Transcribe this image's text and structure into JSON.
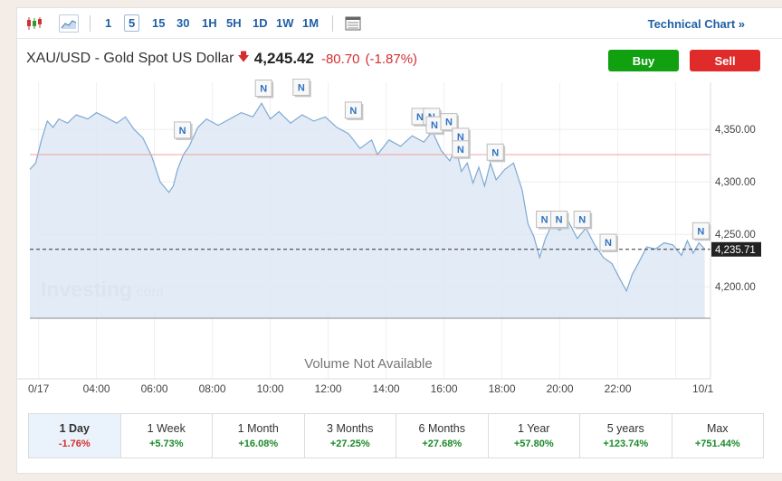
{
  "toolbar": {
    "intervals": [
      "1",
      "5",
      "15",
      "30",
      "1H",
      "5H",
      "1D",
      "1W",
      "1M"
    ],
    "active_interval": "5",
    "technical_chart_label": "Technical Chart »"
  },
  "header": {
    "name": "XAU/USD - Gold Spot US Dollar",
    "arrow": "🡇",
    "price": "4,245.42",
    "change": "-80.70",
    "change_pct": "(-1.87%)"
  },
  "buttons": {
    "buy": "Buy",
    "sell": "Sell"
  },
  "colors": {
    "accent": "#1f5fa6",
    "buy": "#10a010",
    "sell": "#e02b2b",
    "line": "#7fa9d3",
    "fill": "#dde8f4",
    "prev_close": "#f2a0a0",
    "pos": "#1a8a2a",
    "neg": "#d32f2f"
  },
  "chart_data": {
    "type": "area",
    "x_ticks": [
      "0/17",
      "04:00",
      "06:00",
      "08:00",
      "10:00",
      "12:00",
      "14:00",
      "16:00",
      "18:00",
      "20:00",
      "22:00",
      "10/1"
    ],
    "y_ticks": [
      "4,350.00",
      "4,300.00",
      "4,250.00",
      "4,200.00"
    ],
    "y_tick_values": [
      4350,
      4300,
      4250,
      4200
    ],
    "ylim": [
      4170,
      4395
    ],
    "xlim": [
      0,
      23.5
    ],
    "current_value": 4235.71,
    "current_label": "4,235.71",
    "prev_close": 4326,
    "volume_label": "Volume Not Available",
    "watermark": "Investing",
    "watermark_suffix": ".com",
    "news_marker": "N",
    "news_markers": [
      {
        "t": 5.3,
        "v": 4333
      },
      {
        "t": 8.1,
        "v": 4373
      },
      {
        "t": 9.4,
        "v": 4374
      },
      {
        "t": 11.2,
        "v": 4352
      },
      {
        "t": 13.5,
        "v": 4346
      },
      {
        "t": 13.9,
        "v": 4346
      },
      {
        "t": 14.0,
        "v": 4338
      },
      {
        "t": 14.5,
        "v": 4341
      },
      {
        "t": 14.9,
        "v": 4327
      },
      {
        "t": 14.9,
        "v": 4315
      },
      {
        "t": 16.1,
        "v": 4312
      },
      {
        "t": 17.8,
        "v": 4248
      },
      {
        "t": 18.3,
        "v": 4248
      },
      {
        "t": 19.1,
        "v": 4248
      },
      {
        "t": 20.0,
        "v": 4226
      },
      {
        "t": 23.2,
        "v": 4237
      }
    ],
    "series": [
      {
        "t": [
          0,
          0.2,
          0.4,
          0.6,
          0.8,
          1.0,
          1.3,
          1.6,
          2.0,
          2.3,
          2.6,
          3.0,
          3.3,
          3.6,
          3.9,
          4.2,
          4.5,
          4.8,
          4.95,
          5.1,
          5.3,
          5.5,
          5.8,
          6.1,
          6.5,
          6.9,
          7.3,
          7.7,
          8.0,
          8.3,
          8.6,
          9.0,
          9.4,
          9.8,
          10.2,
          10.6,
          11.0,
          11.4,
          11.8,
          12.0,
          12.4,
          12.8,
          13.2,
          13.6,
          13.9,
          14.2,
          14.5,
          14.7,
          14.9,
          15.1,
          15.3,
          15.5,
          15.7,
          15.9,
          16.1,
          16.4,
          16.7,
          17.0,
          17.2,
          17.4,
          17.6,
          17.8,
          18.0,
          18.3,
          18.6,
          18.9,
          19.2,
          19.5,
          19.8,
          20.1,
          20.4,
          20.6,
          20.8,
          21.0,
          21.3,
          21.6,
          21.9,
          22.2,
          22.5,
          22.7,
          22.9,
          23.1,
          23.3
        ],
        "v": [
          4312,
          4318,
          4340,
          4358,
          4352,
          4360,
          4356,
          4364,
          4360,
          4366,
          4362,
          4356,
          4362,
          4350,
          4342,
          4325,
          4300,
          4290,
          4296,
          4312,
          4326,
          4334,
          4352,
          4360,
          4354,
          4360,
          4366,
          4362,
          4375,
          4360,
          4367,
          4356,
          4364,
          4358,
          4362,
          4352,
          4346,
          4332,
          4340,
          4326,
          4340,
          4334,
          4344,
          4338,
          4348,
          4330,
          4320,
          4333,
          4310,
          4318,
          4299,
          4314,
          4296,
          4318,
          4302,
          4312,
          4318,
          4292,
          4260,
          4248,
          4228,
          4246,
          4258,
          4254,
          4262,
          4246,
          4256,
          4240,
          4228,
          4222,
          4206,
          4196,
          4212,
          4222,
          4238,
          4236,
          4242,
          4240,
          4230,
          4244,
          4232,
          4242,
          4236
        ],
        "color": "#7fa9d3"
      }
    ]
  },
  "periods": [
    {
      "label": "1 Day",
      "change": "-1.76%",
      "dir": "neg",
      "active": true
    },
    {
      "label": "1 Week",
      "change": "+5.73%",
      "dir": "pos",
      "active": false
    },
    {
      "label": "1 Month",
      "change": "+16.08%",
      "dir": "pos",
      "active": false
    },
    {
      "label": "3 Months",
      "change": "+27.25%",
      "dir": "pos",
      "active": false
    },
    {
      "label": "6 Months",
      "change": "+27.68%",
      "dir": "pos",
      "active": false
    },
    {
      "label": "1 Year",
      "change": "+57.80%",
      "dir": "pos",
      "active": false
    },
    {
      "label": "5 years",
      "change": "+123.74%",
      "dir": "pos",
      "active": false
    },
    {
      "label": "Max",
      "change": "+751.44%",
      "dir": "pos",
      "active": false
    }
  ]
}
